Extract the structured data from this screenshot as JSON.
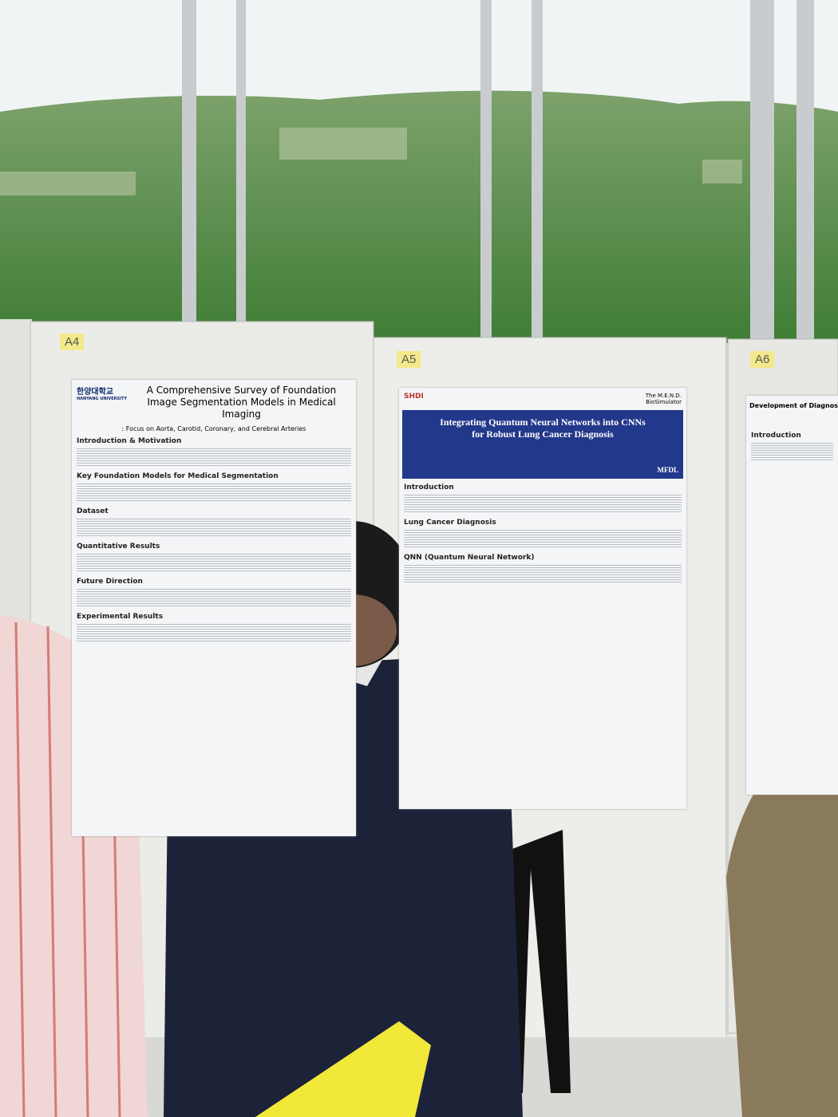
{
  "labels": [
    "A4",
    "A5",
    "A6"
  ],
  "posters": [
    {
      "university": "한양대학교",
      "university_en": "HANYANG UNIVERSITY",
      "title": "A Comprehensive Survey of Foundation Image Segmentation Models in Medical Imaging",
      "subtitle": ": Focus on Aorta, Carotid, Coronary, and Cerebral Arteries",
      "sections": [
        "Introduction & Motivation",
        "Key Foundation Models for Medical Segmentation",
        "Dataset",
        "Quantitative Results",
        "Future Direction",
        "Experimental Results"
      ]
    },
    {
      "logo": "SHDI",
      "logo2": "The M.E.N.D. BioSimulator",
      "logo3": "MFDL",
      "title": "Integrating Quantum Neural Networks into CNNs for Robust Lung Cancer Diagnosis",
      "sections": [
        "Introduction",
        "Lung Cancer Diagnosis",
        "QNN (Quantum Neural Network)"
      ]
    },
    {
      "title": "Development of Diagnostic Factors for",
      "sections": [
        "Introduction"
      ]
    }
  ]
}
